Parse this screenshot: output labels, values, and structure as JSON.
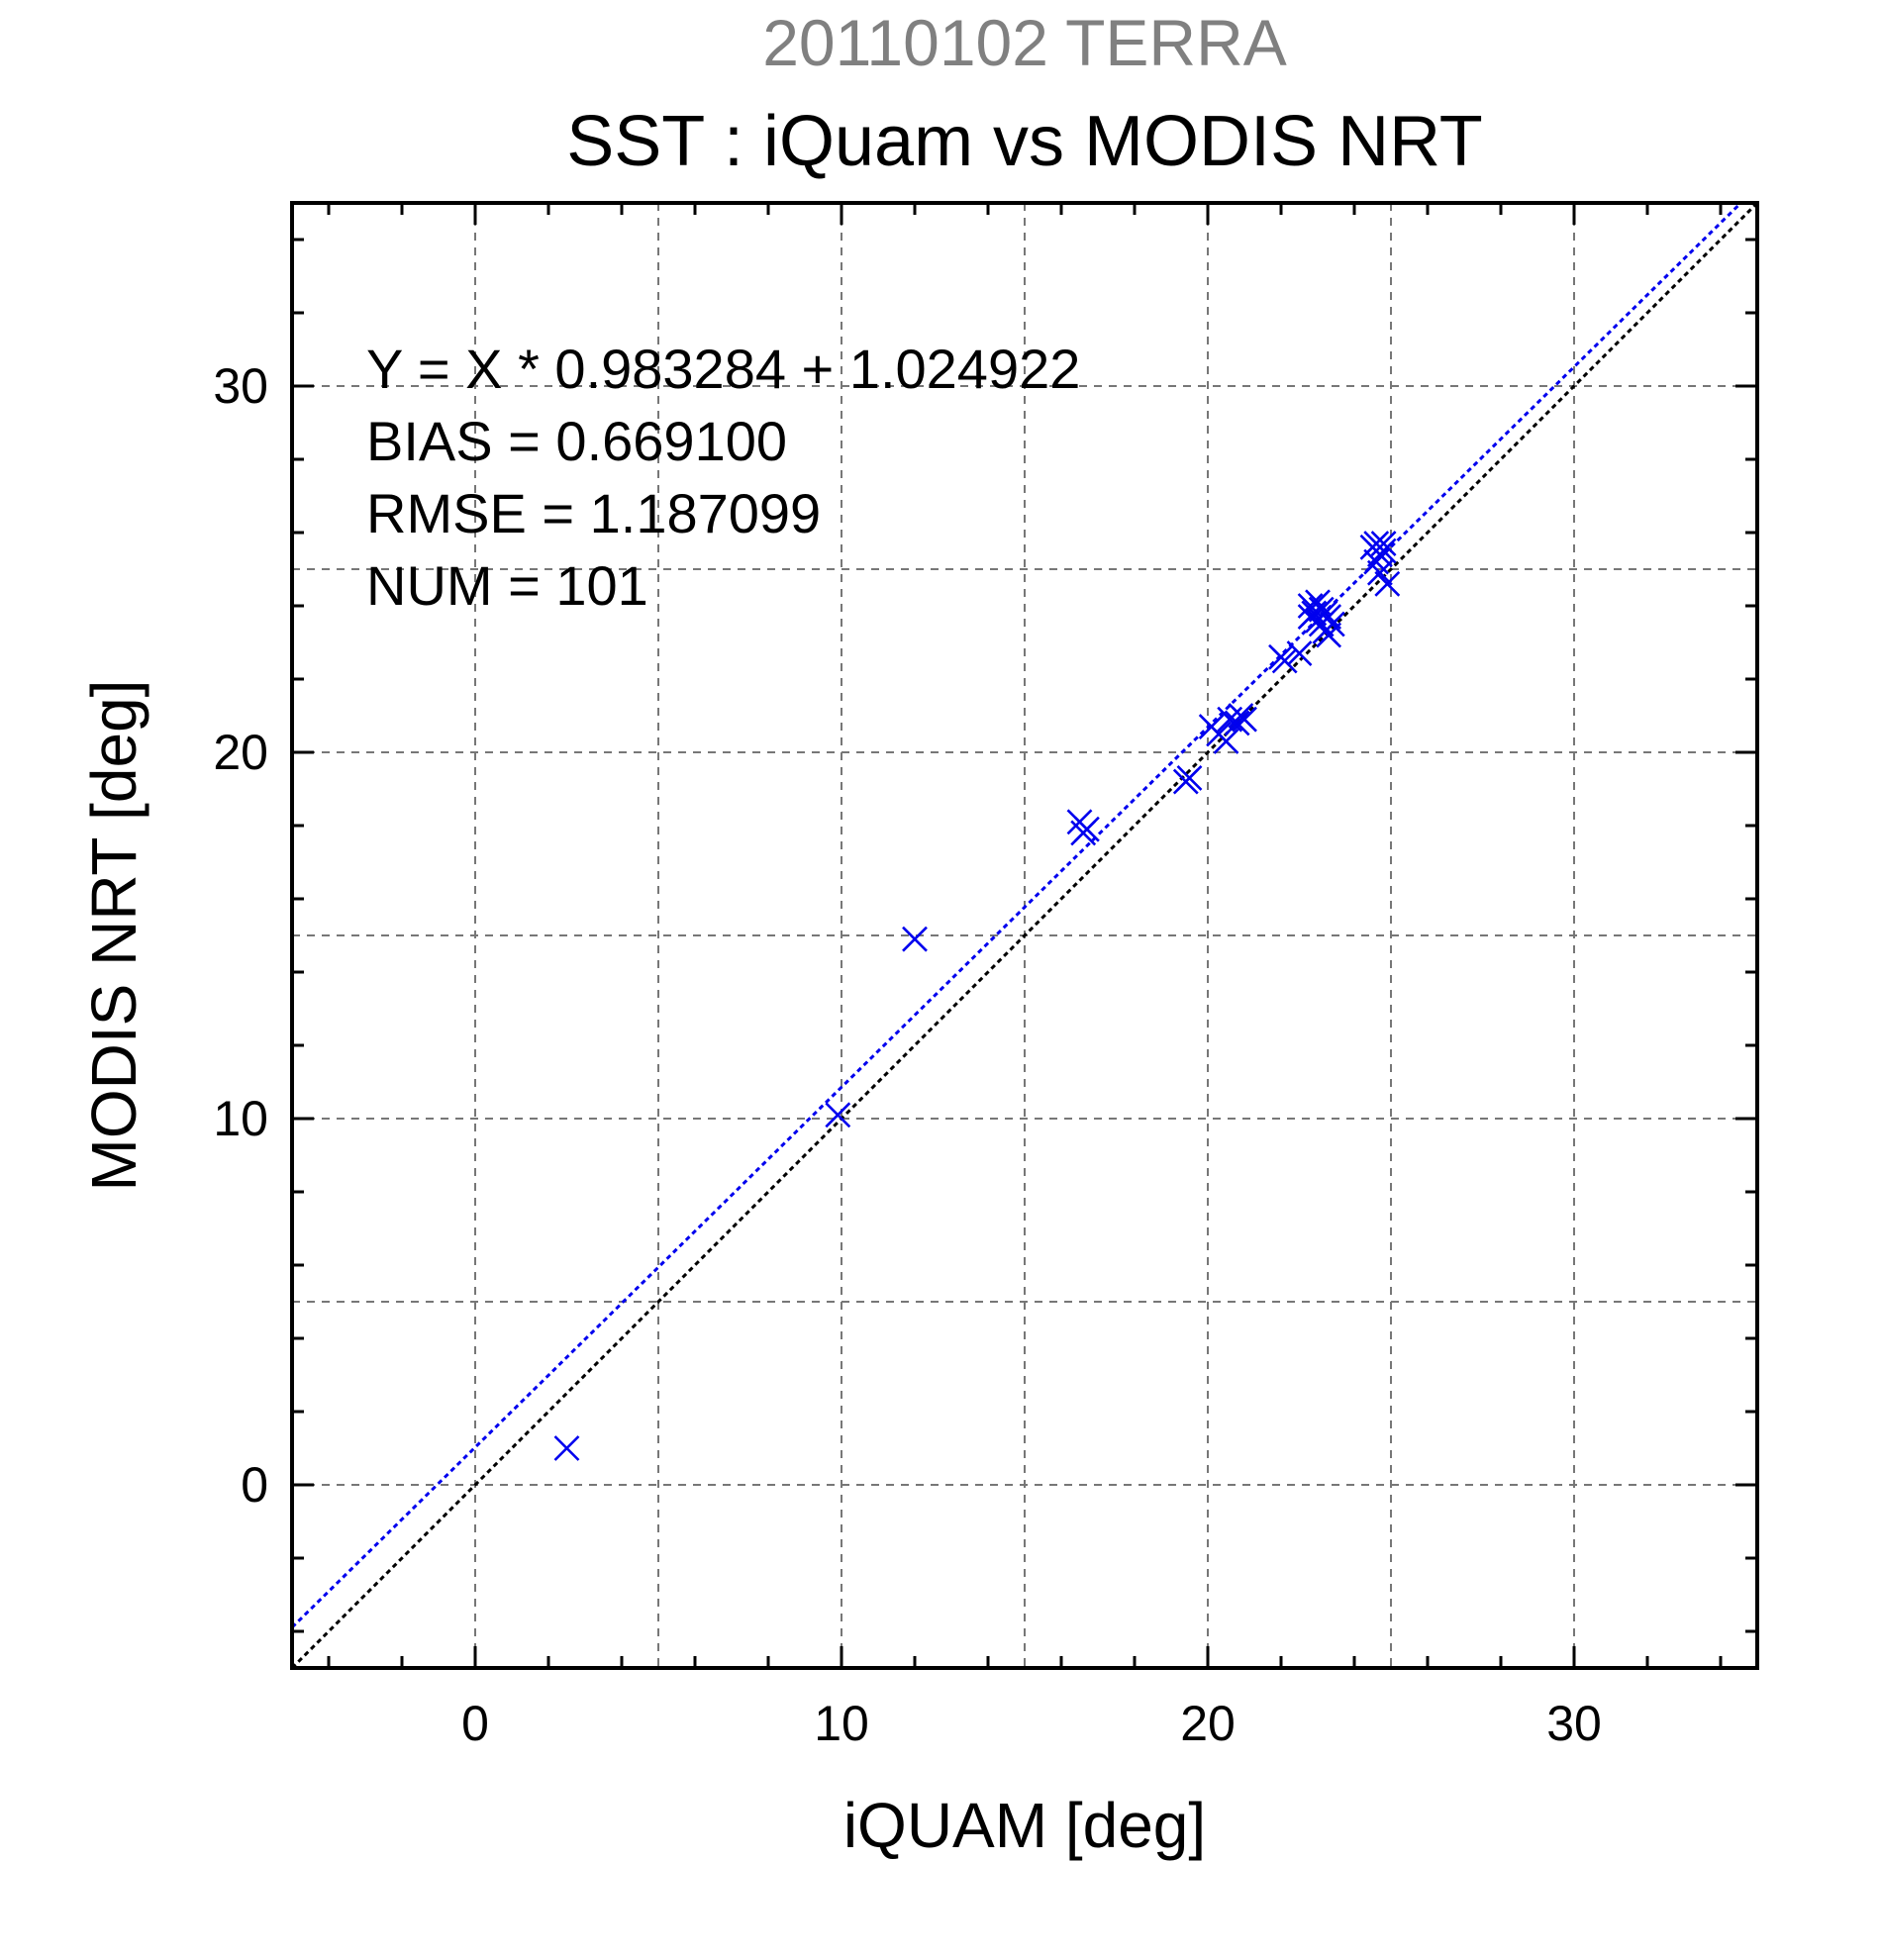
{
  "chart_data": {
    "type": "scatter",
    "subtitle": "20110102 TERRA",
    "title": "SST : iQuam vs MODIS NRT",
    "xlabel": "iQUAM [deg]",
    "ylabel": "MODIS NRT [deg]",
    "xlim": [
      -5,
      35
    ],
    "ylim": [
      -5,
      35
    ],
    "xticks": [
      "0",
      "10",
      "20",
      "30"
    ],
    "yticks": [
      "0",
      "10",
      "20",
      "30"
    ],
    "grid": true,
    "marker_color": "#0000ee",
    "fit_line_color": "#0000ee",
    "identity_line_color": "#000000",
    "annotations": [
      "Y = X * 0.983284 + 1.024922",
      "BIAS = 0.669100",
      "RMSE = 1.187099",
      "NUM = 101"
    ],
    "fit": {
      "slope": 0.983284,
      "intercept": 1.024922
    },
    "series": [
      {
        "marker": "x",
        "x": [
          2.5,
          9.9,
          12.0,
          16.5,
          16.6,
          16.7,
          19.4,
          19.5,
          20.1,
          20.3,
          20.5,
          20.6,
          20.8,
          20.9,
          21.0,
          22.0,
          22.1,
          22.5,
          22.8,
          22.8,
          22.9,
          23.0,
          23.0,
          23.1,
          23.1,
          23.2,
          23.2,
          23.3,
          23.3,
          23.4,
          24.5,
          24.6,
          24.6,
          24.7,
          24.7,
          24.8,
          24.8,
          24.9
        ],
        "y": [
          1.0,
          10.1,
          14.9,
          18.1,
          17.8,
          17.9,
          19.2,
          19.3,
          20.7,
          20.5,
          20.3,
          20.9,
          20.8,
          21.0,
          20.9,
          22.6,
          22.5,
          22.7,
          23.7,
          24.0,
          23.8,
          23.6,
          24.1,
          23.9,
          23.5,
          23.8,
          23.3,
          23.7,
          23.2,
          23.5,
          25.6,
          25.2,
          25.7,
          25.4,
          24.9,
          25.5,
          25.7,
          24.6
        ]
      }
    ]
  }
}
